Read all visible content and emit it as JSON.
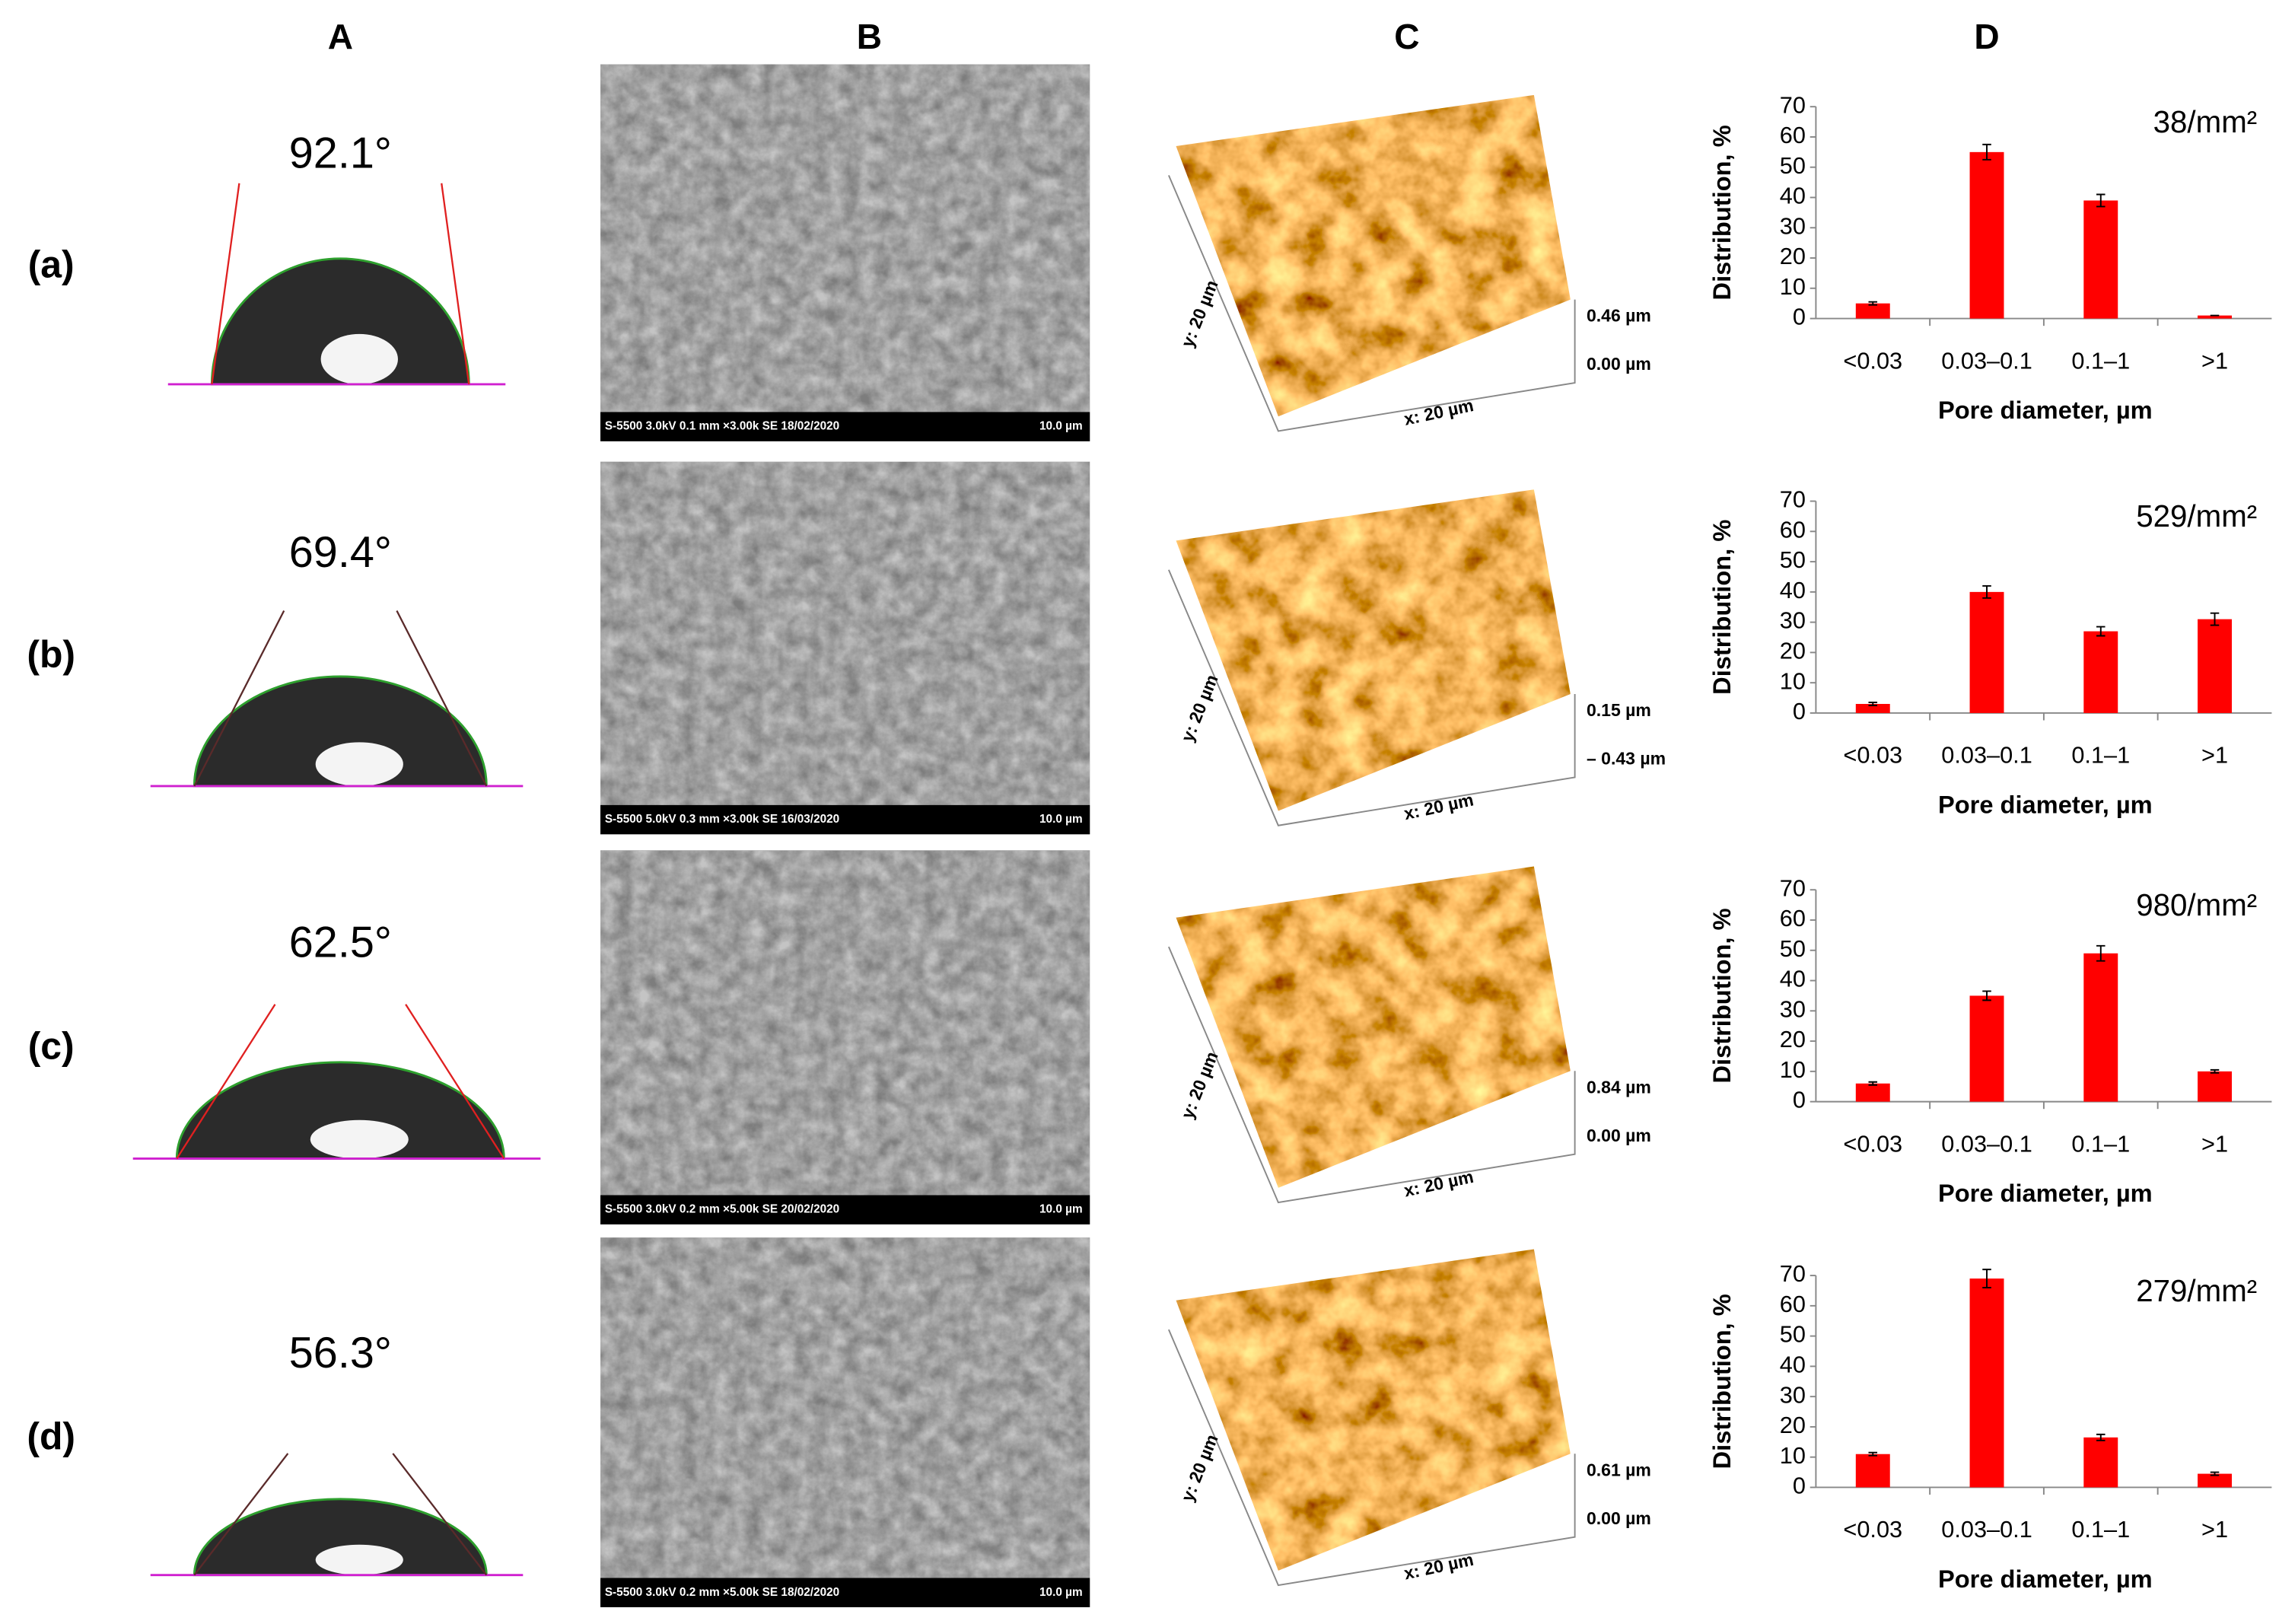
{
  "panel_headers": [
    "A",
    "B",
    "C",
    "D"
  ],
  "row_labels": [
    "(a)",
    "(b)",
    "(c)",
    "(d)"
  ],
  "contact_angles": [
    "92.1°",
    "69.4°",
    "62.5°",
    "56.3°"
  ],
  "sem_captions": [
    {
      "info": "S-5500 3.0kV 0.1 mm ×3.00k SE 18/02/2020",
      "scale": "10.0 µm"
    },
    {
      "info": "S-5500 5.0kV 0.3 mm ×3.00k SE 16/03/2020",
      "scale": "10.0 µm"
    },
    {
      "info": "S-5500 3.0kV 0.2 mm ×5.00k SE 20/02/2020",
      "scale": "10.0 µm"
    },
    {
      "info": "S-5500 3.0kV 0.2 mm ×5.00k SE 18/02/2020",
      "scale": "10.0 µm"
    }
  ],
  "afm": [
    {
      "y_axis": "y: 20 µm",
      "x_axis": "x: 20 µm",
      "z_max": "0.46 µm",
      "z_min": "0.00 µm"
    },
    {
      "y_axis": "y: 20 µm",
      "x_axis": "x: 20 µm",
      "z_max": "0.15 µm",
      "z_min": "– 0.43 µm"
    },
    {
      "y_axis": "y: 20 µm",
      "x_axis": "x: 20 µm",
      "z_max": "0.84 µm",
      "z_min": "0.00 µm"
    },
    {
      "y_axis": "y: 20 µm",
      "x_axis": "x: 20 µm",
      "z_max": "0.61 µm",
      "z_min": "0.00 µm"
    }
  ],
  "chart_data": [
    {
      "type": "bar",
      "annotation": "38/mm²",
      "y_label": "Distribution, %",
      "x_label": "Pore diameter, µm",
      "categories": [
        "<0.03",
        "0.03–0.1",
        "0.1–1",
        ">1"
      ],
      "values": [
        5,
        55,
        39,
        1
      ],
      "errors": [
        0.5,
        2.5,
        2,
        0
      ],
      "color": "#ff0000",
      "ylim": [
        0,
        70
      ],
      "yticks": [
        0,
        10,
        20,
        30,
        40,
        50,
        60,
        70
      ]
    },
    {
      "type": "bar",
      "annotation": "529/mm²",
      "y_label": "Distribution, %",
      "x_label": "Pore diameter, µm",
      "categories": [
        "<0.03",
        "0.03–0.1",
        "0.1–1",
        ">1"
      ],
      "values": [
        3,
        40,
        27,
        31
      ],
      "errors": [
        0.5,
        2,
        1.5,
        2
      ],
      "color": "#ff0000",
      "ylim": [
        0,
        70
      ],
      "yticks": [
        0,
        10,
        20,
        30,
        40,
        50,
        60,
        70
      ]
    },
    {
      "type": "bar",
      "annotation": "980/mm²",
      "y_label": "Distribution, %",
      "x_label": "Pore diameter, µm",
      "categories": [
        "<0.03",
        "0.03–0.1",
        "0.1–1",
        ">1"
      ],
      "values": [
        6,
        35,
        49,
        10
      ],
      "errors": [
        0.5,
        1.5,
        2.5,
        0.5
      ],
      "color": "#ff0000",
      "ylim": [
        0,
        70
      ],
      "yticks": [
        0,
        10,
        20,
        30,
        40,
        50,
        60,
        70
      ]
    },
    {
      "type": "bar",
      "annotation": "279/mm²",
      "y_label": "Distribution, %",
      "x_label": "Pore diameter, µm",
      "categories": [
        "<0.03",
        "0.03–0.1",
        "0.1–1",
        ">1"
      ],
      "values": [
        11,
        69,
        16.5,
        4.5
      ],
      "errors": [
        0.5,
        3,
        1,
        0.5
      ],
      "color": "#ff0000",
      "ylim": [
        0,
        70
      ],
      "yticks": [
        0,
        10,
        20,
        30,
        40,
        50,
        60,
        70
      ]
    }
  ]
}
